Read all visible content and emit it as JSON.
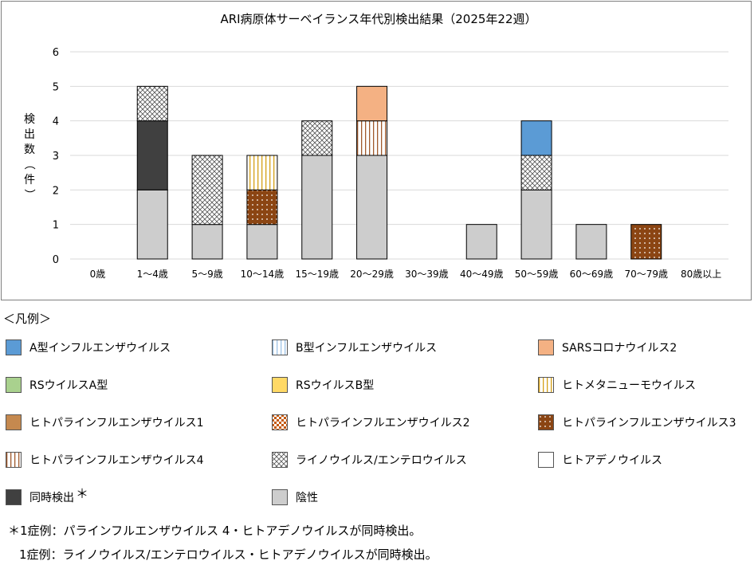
{
  "chart_data": {
    "type": "bar",
    "stacked": true,
    "title": "ARI病原体サーベイランス年代別検出結果（2025年22週）",
    "ylabel": "検出数（件）",
    "ylim": [
      0,
      6
    ],
    "yticks": [
      0,
      1,
      2,
      3,
      4,
      5,
      6
    ],
    "grid": true,
    "categories": [
      "0歳",
      "1～4歳",
      "5～9歳",
      "10～14歳",
      "15～19歳",
      "20～29歳",
      "30～39歳",
      "40～49歳",
      "50～59歳",
      "60～69歳",
      "70～79歳",
      "80歳以上"
    ],
    "series": [
      {
        "name": "陰性",
        "key": "negative",
        "color": "#cdcdcd",
        "pattern": "solid",
        "values": [
          0,
          2,
          1,
          1,
          3,
          3,
          0,
          1,
          2,
          1,
          0,
          0
        ]
      },
      {
        "name": "同時検出",
        "key": "coinfection",
        "color": "#404040",
        "pattern": "solid",
        "values": [
          0,
          2,
          0,
          0,
          0,
          0,
          0,
          0,
          0,
          0,
          0,
          0
        ]
      },
      {
        "name": "ヒトパラインフルエンザウイルス3",
        "key": "hpiv3",
        "color": "#8b4513",
        "pattern": "dots",
        "values": [
          0,
          0,
          0,
          1,
          0,
          0,
          0,
          0,
          0,
          0,
          1,
          0
        ]
      },
      {
        "name": "ヒトパラインフルエンザウイルス4",
        "key": "hpiv4",
        "color": "#a05a2c",
        "pattern": "vlines",
        "values": [
          0,
          0,
          0,
          0,
          0,
          1,
          0,
          0,
          0,
          0,
          0,
          0
        ]
      },
      {
        "name": "ライノウイルス/エンテロウイルス",
        "key": "rhino",
        "color": "#555555",
        "pattern": "crosshatch",
        "values": [
          0,
          1,
          2,
          0,
          1,
          0,
          0,
          0,
          1,
          0,
          0,
          0
        ]
      },
      {
        "name": "ヒトメタニューモウイルス",
        "key": "hmpv",
        "color": "#d4a017",
        "pattern": "vlines",
        "values": [
          0,
          0,
          0,
          1,
          0,
          0,
          0,
          0,
          0,
          0,
          0,
          0
        ]
      },
      {
        "name": "A型インフルエンザウイルス",
        "key": "flu_a",
        "color": "#5b9bd5",
        "pattern": "solid",
        "values": [
          0,
          0,
          0,
          0,
          0,
          0,
          0,
          0,
          1,
          0,
          0,
          0
        ]
      },
      {
        "name": "SARSコロナウイルス2",
        "key": "sars",
        "color": "#f4b183",
        "pattern": "solid",
        "values": [
          0,
          0,
          0,
          0,
          0,
          1,
          0,
          0,
          0,
          0,
          0,
          0
        ]
      }
    ]
  },
  "legend": {
    "heading": "＜凡例＞",
    "items": [
      {
        "label": "A型インフルエンザウイルス",
        "color": "#5b9bd5",
        "pattern": "solid"
      },
      {
        "label": "B型インフルエンザウイルス",
        "color": "#9dc3e6",
        "pattern": "vlines"
      },
      {
        "label": "SARSコロナウイルス2",
        "color": "#f4b183",
        "pattern": "solid"
      },
      {
        "label": "RSウイルスA型",
        "color": "#a9d18e",
        "pattern": "solid"
      },
      {
        "label": "RSウイルスB型",
        "color": "#ffd966",
        "pattern": "solid"
      },
      {
        "label": "ヒトメタニューモウイルス",
        "color": "#d4a017",
        "pattern": "vlines"
      },
      {
        "label": "ヒトパラインフルエンザウイルス1",
        "color": "#c5894f",
        "pattern": "solid"
      },
      {
        "label": "ヒトパラインフルエンザウイルス2",
        "color": "#c55a11",
        "pattern": "checker"
      },
      {
        "label": "ヒトパラインフルエンザウイルス3",
        "color": "#8b4513",
        "pattern": "dots"
      },
      {
        "label": "ヒトパラインフルエンザウイルス4",
        "color": "#a05a2c",
        "pattern": "vlines"
      },
      {
        "label": "ライノウイルス/エンテロウイルス",
        "color": "#555555",
        "pattern": "crosshatch"
      },
      {
        "label": "ヒトアデノウイルス",
        "color": "#ffffff",
        "pattern": "solid"
      },
      {
        "label": "同時検出",
        "color": "#404040",
        "pattern": "solid",
        "mark": "＊"
      },
      {
        "label": "陰性",
        "color": "#cdcdcd",
        "pattern": "solid"
      }
    ]
  },
  "notes": [
    "＊1症例：パラインフルエンザウイルス 4・ヒトアデノウイルスが同時検出。",
    "1症例：ライノウイルス/エンテロウイルス・ヒトアデノウイルスが同時検出。"
  ]
}
